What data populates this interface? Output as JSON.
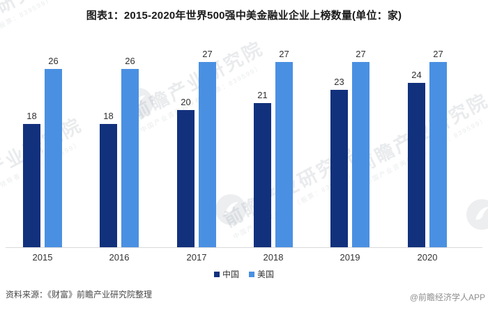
{
  "title": "图表1：2015-2020年世界500强中美金融业企业上榜数量(单位：家)",
  "chart_data": {
    "type": "bar",
    "title": "图表1：2015-2020年世界500强中美金融业企业上榜数量(单位：家)",
    "unit": "家",
    "categories": [
      "2015",
      "2016",
      "2017",
      "2018",
      "2019",
      "2020"
    ],
    "series": [
      {
        "key": "china",
        "name": "中国",
        "color": "#12317D",
        "values": [
          18,
          18,
          20,
          21,
          23,
          24
        ]
      },
      {
        "key": "us",
        "name": "美国",
        "color": "#4A90E2",
        "values": [
          26,
          26,
          27,
          27,
          27,
          27
        ]
      }
    ],
    "xlabel": "",
    "ylabel": "",
    "ylim": [
      0,
      30
    ],
    "grid": false,
    "y_axis_visible": false,
    "value_labels": true,
    "legend_position": "bottom"
  },
  "footer": {
    "source": "资料来源：《财富》前瞻产业研究院整理",
    "attribution": "@前瞻经济学人APP"
  },
  "watermark": {
    "text": "前瞻产业研究院",
    "subtext": "中国产业咨询领导者（股票：839599）"
  },
  "colors": {
    "china_bar": "#12317D",
    "us_bar": "#4A90E2",
    "axis_line": "#D9D9D9",
    "title_text": "#1A1A1A",
    "label_text": "#303030"
  }
}
